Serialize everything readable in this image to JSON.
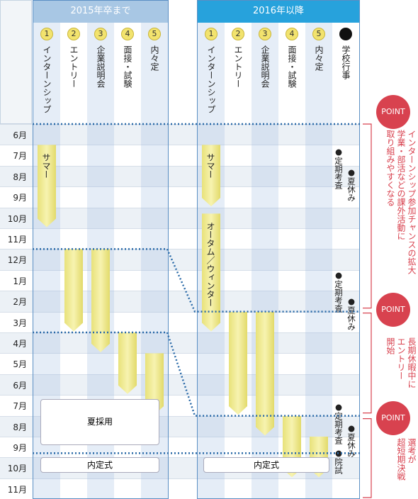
{
  "months": [
    "6月",
    "7月",
    "8月",
    "9月",
    "10月",
    "11月",
    "12月",
    "1月",
    "2月",
    "3月",
    "4月",
    "5月",
    "6月",
    "7月",
    "8月",
    "9月",
    "10月",
    "11月"
  ],
  "panels": [
    {
      "title": "2015年卒まで",
      "columns": [
        {
          "number": "1",
          "label": "インターンシップ"
        },
        {
          "number": "2",
          "label": "エントリー"
        },
        {
          "number": "3",
          "label": "企業説明会"
        },
        {
          "number": "4",
          "label": "面接・試験"
        },
        {
          "number": "5",
          "label": "内々定"
        }
      ],
      "bars": [
        {
          "label": "サマー"
        },
        {
          "label": ""
        },
        {
          "label": ""
        },
        {
          "label": ""
        },
        {
          "label": ""
        }
      ],
      "boxes": [
        "夏採用",
        "内定式"
      ]
    },
    {
      "title": "2016年以降",
      "columns": [
        {
          "number": "1",
          "label": "インターンシップ"
        },
        {
          "number": "2",
          "label": "エントリー"
        },
        {
          "number": "3",
          "label": "企業説明会"
        },
        {
          "number": "4",
          "label": "面接・試験"
        },
        {
          "number": "5",
          "label": "内々定"
        },
        {
          "number": "●",
          "label": "学校行事"
        }
      ],
      "bars": [
        {
          "label": "サマー"
        },
        {
          "label": "オータム／ウィンター"
        },
        {
          "label": ""
        },
        {
          "label": ""
        },
        {
          "label": ""
        },
        {
          "label": ""
        }
      ],
      "boxes": [
        "内定式"
      ]
    }
  ],
  "school_events": [
    "●定期考査",
    "●夏休み",
    "●定期考査",
    "●夏休み",
    "●定期考査",
    "●夏休み",
    "●院試"
  ],
  "points": [
    {
      "badge": "POINT",
      "lines": [
        "インターンシップ参加チャンスの拡大",
        "学業・部活などの課外活動に",
        "取り組みやすくなる"
      ]
    },
    {
      "badge": "POINT",
      "lines": [
        "長期休暇中に",
        "エントリー",
        "開始"
      ]
    },
    {
      "badge": "POINT",
      "lines": [
        "選考が",
        "超短期決戦"
      ]
    }
  ]
}
